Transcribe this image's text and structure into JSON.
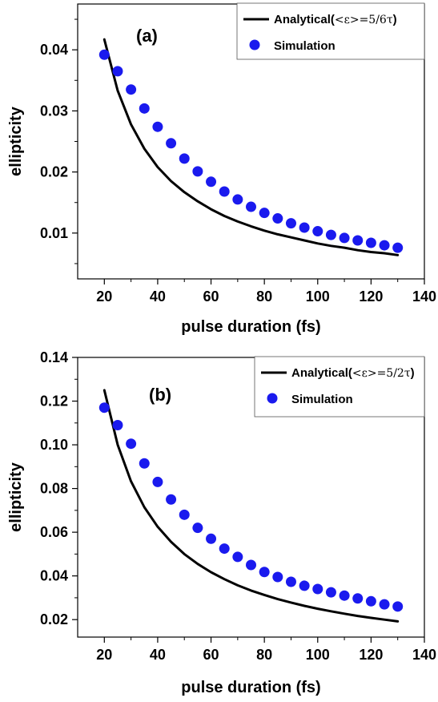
{
  "colors": {
    "analytical": "#000000",
    "simulation": "#1a1aee",
    "axis": "#000000"
  },
  "chart_data": [
    {
      "type": "line",
      "panel_label": "(a)",
      "xlabel": "pulse duration (fs)",
      "ylabel": "ellipticity",
      "xlim": [
        10,
        140
      ],
      "ylim": [
        0.0025,
        0.0475
      ],
      "xticks": [
        "20",
        "40",
        "60",
        "80",
        "100",
        "120",
        "140"
      ],
      "yticks": [
        "0.01",
        "0.02",
        "0.03",
        "0.04"
      ],
      "legend": {
        "position": "top-right",
        "analytical_prefix": "Analytical(",
        "analytical_formula": "<ε>=5/6τ",
        "analytical_suffix": ")",
        "simulation_label": "Simulation"
      },
      "series": [
        {
          "name": "Analytical(<ε>=5/6τ)",
          "kind": "line",
          "x": [
            20,
            25,
            30,
            35,
            40,
            45,
            50,
            55,
            60,
            65,
            70,
            75,
            80,
            85,
            90,
            95,
            100,
            105,
            110,
            115,
            120,
            125,
            130
          ],
          "y": [
            0.0417,
            0.0333,
            0.0278,
            0.0238,
            0.0208,
            0.0185,
            0.0167,
            0.0152,
            0.0139,
            0.0128,
            0.0119,
            0.0111,
            0.0104,
            0.0098,
            0.0093,
            0.0088,
            0.0083,
            0.0079,
            0.0076,
            0.0072,
            0.0069,
            0.0067,
            0.0064
          ]
        },
        {
          "name": "Simulation",
          "kind": "scatter",
          "x": [
            20,
            25,
            30,
            35,
            40,
            45,
            50,
            55,
            60,
            65,
            70,
            75,
            80,
            85,
            90,
            95,
            100,
            105,
            110,
            115,
            120,
            125,
            130
          ],
          "y": [
            0.0392,
            0.0365,
            0.0335,
            0.0304,
            0.0274,
            0.0247,
            0.0222,
            0.0201,
            0.0184,
            0.0168,
            0.0155,
            0.0143,
            0.0133,
            0.0124,
            0.0116,
            0.0109,
            0.0103,
            0.0097,
            0.0092,
            0.0088,
            0.0084,
            0.008,
            0.0076
          ]
        }
      ]
    },
    {
      "type": "line",
      "panel_label": "(b)",
      "xlabel": "pulse duration (fs)",
      "ylabel": "ellipticity",
      "xlim": [
        10,
        140
      ],
      "ylim": [
        0.012,
        0.14
      ],
      "xticks": [
        "20",
        "40",
        "60",
        "80",
        "100",
        "120",
        "140"
      ],
      "yticks": [
        "0.02",
        "0.04",
        "0.06",
        "0.08",
        "0.10",
        "0.12",
        "0.14"
      ],
      "legend": {
        "position": "top-right",
        "analytical_prefix": "Analytical(",
        "analytical_formula": "<ε>=5/2τ",
        "analytical_suffix": ")",
        "simulation_label": "Simulation"
      },
      "series": [
        {
          "name": "Analytical(<ε>=5/2τ)",
          "kind": "line",
          "x": [
            20,
            25,
            30,
            35,
            40,
            45,
            50,
            55,
            60,
            65,
            70,
            75,
            80,
            85,
            90,
            95,
            100,
            105,
            110,
            115,
            120,
            125,
            130
          ],
          "y": [
            0.125,
            0.1,
            0.0833,
            0.0714,
            0.0625,
            0.0556,
            0.05,
            0.0455,
            0.0417,
            0.0385,
            0.0357,
            0.0333,
            0.0313,
            0.0294,
            0.0278,
            0.0263,
            0.025,
            0.0238,
            0.0227,
            0.0217,
            0.0208,
            0.02,
            0.0192
          ]
        },
        {
          "name": "Simulation",
          "kind": "scatter",
          "x": [
            20,
            25,
            30,
            35,
            40,
            45,
            50,
            55,
            60,
            65,
            70,
            75,
            80,
            85,
            90,
            95,
            100,
            105,
            110,
            115,
            120,
            125,
            130
          ],
          "y": [
            0.117,
            0.109,
            0.1005,
            0.0915,
            0.083,
            0.075,
            0.068,
            0.062,
            0.057,
            0.0525,
            0.0487,
            0.045,
            0.0418,
            0.0395,
            0.0373,
            0.0355,
            0.034,
            0.0325,
            0.031,
            0.0297,
            0.0284,
            0.027,
            0.026
          ]
        }
      ]
    }
  ]
}
